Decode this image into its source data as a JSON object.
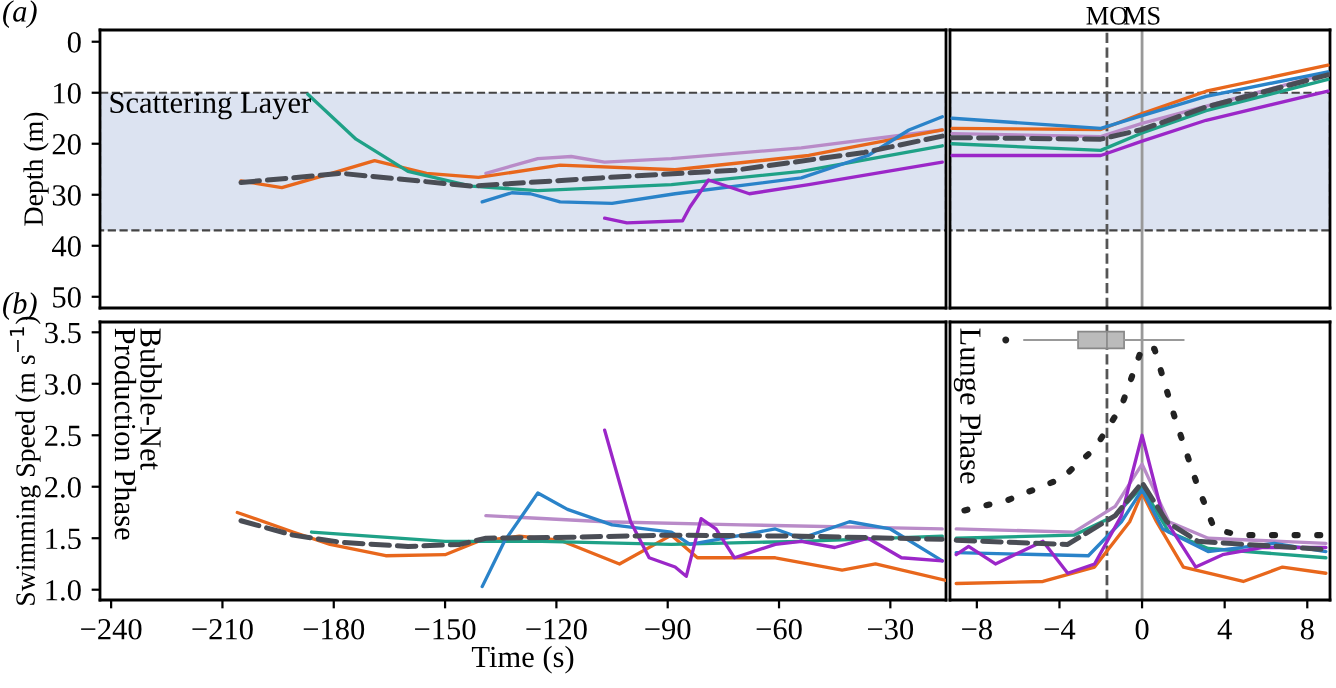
{
  "chart_data": [
    {
      "type": "line",
      "title": "(a)",
      "ylabel": "Depth (m)",
      "xlim": [
        -243,
        -15
      ],
      "ylim": [
        52.2,
        -2.3
      ],
      "xticks": [
        -240,
        -210,
        -180,
        -150,
        -120,
        -90,
        -60,
        -30
      ],
      "yticks": [
        0,
        10,
        20,
        30,
        40,
        50
      ],
      "tick_labels": "y",
      "bands": [
        {
          "axis": "y",
          "from": 10,
          "to": 37,
          "label": "Scattering Layer",
          "color": "#dce3f1"
        }
      ],
      "series": [
        {
          "color": "#b98bc8",
          "x": [
            -139,
            -125,
            -116,
            -107,
            -89,
            -54,
            -16
          ],
          "values": [
            25.8,
            22.9,
            22.5,
            23.6,
            22.9,
            20.8,
            17.3
          ]
        },
        {
          "color": "#e8671c",
          "x": [
            -205,
            -194,
            -182,
            -169,
            -155,
            -141,
            -119,
            -88,
            -52,
            -16
          ],
          "values": [
            27.3,
            28.6,
            26.1,
            23.3,
            25.8,
            26.6,
            24.2,
            25.1,
            22.3,
            17.3
          ]
        },
        {
          "color": "#1fa187",
          "x": [
            -187,
            -174,
            -160,
            -143,
            -125,
            -89,
            -54,
            -16
          ],
          "values": [
            10.3,
            19.1,
            25.4,
            28.3,
            29.2,
            28.0,
            25.4,
            20.4
          ]
        },
        {
          "color": "#2a83c9",
          "x": [
            -140,
            -132,
            -127,
            -119,
            -105,
            -88,
            -54,
            -36,
            -25,
            -16
          ],
          "values": [
            31.4,
            29.6,
            29.8,
            31.4,
            31.7,
            29.8,
            26.7,
            22.3,
            17.3,
            14.7
          ]
        },
        {
          "color": "#9b27c8",
          "x": [
            -107,
            -101,
            -86,
            -84,
            -79,
            -68,
            -52,
            -34,
            -16
          ],
          "values": [
            34.6,
            35.5,
            35.1,
            32.4,
            27.1,
            29.8,
            28.0,
            25.8,
            23.6
          ]
        },
        {
          "color": "#4a4d55",
          "line_style": "dashed",
          "x": [
            -205,
            -178,
            -143,
            -108,
            -72,
            -37,
            -16
          ],
          "values": [
            27.6,
            25.8,
            28.3,
            26.7,
            25.2,
            21.7,
            18.5
          ]
        }
      ]
    },
    {
      "type": "line",
      "xlim": [
        -9.3,
        9.1
      ],
      "ylim": [
        52.2,
        -2.3
      ],
      "xticks": [
        -8,
        -4,
        0,
        4,
        8
      ],
      "yticks": [
        0,
        10,
        20,
        30,
        40,
        50
      ],
      "tick_labels": false,
      "bands": [
        {
          "axis": "y",
          "from": 10,
          "to": 37,
          "color": "#dce3f1"
        }
      ],
      "ref_lines": [
        {
          "axis": "x",
          "value": -1.7,
          "label": "MO",
          "color": "#555555",
          "line_style": "dashed"
        },
        {
          "axis": "x",
          "value": 0,
          "label": "MS",
          "color": "#999999",
          "line_style": "solid"
        }
      ],
      "series": [
        {
          "color": "#b98bc8",
          "x": [
            -9.2,
            -2.0,
            0,
            9.0
          ],
          "values": [
            18.0,
            18.6,
            16.0,
            6.2
          ]
        },
        {
          "color": "#e8671c",
          "x": [
            -9.2,
            -2.0,
            0,
            3.1,
            9.0
          ],
          "values": [
            17.0,
            17.2,
            14.1,
            9.7,
            4.6
          ]
        },
        {
          "color": "#1fa187",
          "x": [
            -9.2,
            -2.0,
            0,
            3.1,
            9.0
          ],
          "values": [
            20.0,
            21.3,
            17.9,
            13.5,
            7.4
          ]
        },
        {
          "color": "#2a83c9",
          "x": [
            -9.2,
            -2.0,
            0,
            3.1,
            9.0
          ],
          "values": [
            15.0,
            17.0,
            14.5,
            10.7,
            5.9
          ]
        },
        {
          "color": "#9b27c8",
          "x": [
            -9.2,
            -2.0,
            0,
            3.1,
            9.0
          ],
          "values": [
            22.3,
            22.3,
            19.5,
            15.4,
            9.7
          ]
        },
        {
          "color": "#4a4d55",
          "line_style": "dashed",
          "x": [
            -9.2,
            -2.0,
            0,
            3.1,
            9.0
          ],
          "values": [
            18.8,
            19.1,
            17.2,
            12.8,
            6.5
          ]
        }
      ]
    },
    {
      "type": "line",
      "title": "(b)",
      "xlabel": "Time (s)",
      "ylabel": "Swimming Speed (m s$^{−1}$)",
      "xlim": [
        -243,
        -15
      ],
      "ylim": [
        0.9,
        3.6
      ],
      "xticks": [
        {
          "value": -240,
          "label": "−240"
        },
        {
          "value": -210,
          "label": "−210"
        },
        {
          "value": -180,
          "label": "−180"
        },
        {
          "value": -150,
          "label": "−150"
        },
        {
          "value": -120,
          "label": "−120"
        },
        {
          "value": -90,
          "label": "−90"
        },
        {
          "value": -60,
          "label": "−60"
        },
        {
          "value": -30,
          "label": "−30"
        }
      ],
      "yticks": [
        {
          "value": 1,
          "label": "1.0"
        },
        1.5,
        {
          "value": 2,
          "label": "2.0"
        },
        2.5,
        {
          "value": 3,
          "label": "3.0"
        },
        3.5
      ],
      "annotations": [
        "Bubble-Net\nProduction Phase"
      ],
      "series": [
        {
          "color": "#b98bc8",
          "x": [
            -139,
            -107,
            -70,
            -16
          ],
          "values": [
            1.72,
            1.66,
            1.63,
            1.59
          ]
        },
        {
          "color": "#e8671c",
          "x": [
            -206,
            -191,
            -181,
            -166,
            -150,
            -141,
            -130,
            -119,
            -103,
            -89,
            -82,
            -61,
            -43,
            -34,
            -15
          ],
          "values": [
            1.75,
            1.56,
            1.44,
            1.33,
            1.34,
            1.47,
            1.52,
            1.48,
            1.25,
            1.53,
            1.31,
            1.31,
            1.19,
            1.25,
            1.09
          ]
        },
        {
          "color": "#1fa187",
          "x": [
            -186,
            -150,
            -124,
            -89,
            -54,
            -16
          ],
          "values": [
            1.56,
            1.47,
            1.47,
            1.44,
            1.47,
            1.52
          ]
        },
        {
          "color": "#2a83c9",
          "x": [
            -140,
            -134,
            -125,
            -117,
            -105,
            -89,
            -84,
            -70,
            -61,
            -54,
            -41,
            -30,
            -16
          ],
          "values": [
            1.03,
            1.47,
            1.94,
            1.78,
            1.63,
            1.56,
            1.44,
            1.53,
            1.59,
            1.5,
            1.66,
            1.59,
            1.28
          ]
        },
        {
          "color": "#9b27c8",
          "x": [
            -107,
            -100,
            -95,
            -88,
            -85,
            -81,
            -77,
            -72,
            -61,
            -54,
            -45,
            -36,
            -27,
            -16
          ],
          "values": [
            2.55,
            1.66,
            1.31,
            1.22,
            1.13,
            1.69,
            1.59,
            1.31,
            1.44,
            1.47,
            1.41,
            1.5,
            1.31,
            1.28
          ]
        },
        {
          "color": "#4a4d55",
          "line_style": "dashed",
          "x": [
            -205,
            -191,
            -178,
            -160,
            -146,
            -139,
            -116,
            -89,
            -54,
            -16
          ],
          "values": [
            1.67,
            1.53,
            1.46,
            1.42,
            1.44,
            1.5,
            1.51,
            1.53,
            1.52,
            1.49
          ]
        }
      ]
    },
    {
      "type": "line",
      "xlim": [
        -9.3,
        9.1
      ],
      "ylim": [
        0.9,
        3.6
      ],
      "xticks": [
        {
          "value": -8,
          "label": "−8"
        },
        {
          "value": -4,
          "label": "−4"
        },
        0,
        4,
        8
      ],
      "yticks": [
        1,
        1.5,
        2,
        2.5,
        3,
        3.5
      ],
      "tick_labels": "x",
      "annotations": [
        "Lunge Phase"
      ],
      "ref_lines": [
        {
          "axis": "x",
          "value": -1.7,
          "color": "#555555",
          "line_style": "dashed"
        },
        {
          "axis": "x",
          "value": 0,
          "color": "#999999",
          "line_style": "solid"
        }
      ],
      "series": [
        {
          "color": "#222222",
          "line_style": "dotted",
          "x": [
            -8.6,
            -6.5,
            -3.9,
            -2.3,
            -1.0,
            0,
            0.6,
            1.6,
            2.65,
            3.5,
            4.7,
            8.9
          ],
          "values": [
            1.77,
            1.87,
            2.08,
            2.37,
            2.78,
            3.35,
            3.34,
            2.66,
            2.03,
            1.59,
            1.53,
            1.53
          ]
        },
        {
          "color": "#b98bc8",
          "x": [
            -9,
            -3.3,
            -1.3,
            0,
            1.3,
            3.2,
            8.9
          ],
          "values": [
            1.59,
            1.56,
            1.81,
            2.22,
            1.66,
            1.5,
            1.45
          ]
        },
        {
          "color": "#e8671c",
          "x": [
            -9,
            -4.8,
            -2.3,
            -0.6,
            0,
            0.7,
            2,
            4.9,
            6.8,
            8.9
          ],
          "values": [
            1.06,
            1.08,
            1.22,
            1.66,
            1.94,
            1.66,
            1.22,
            1.08,
            1.22,
            1.16
          ]
        },
        {
          "color": "#1fa187",
          "x": [
            -9,
            -3.3,
            -1.3,
            0,
            1.3,
            3.2,
            8.9
          ],
          "values": [
            1.5,
            1.53,
            1.72,
            2.0,
            1.56,
            1.4,
            1.31
          ]
        },
        {
          "color": "#2a83c9",
          "x": [
            -9,
            -2.6,
            -1,
            0,
            1,
            3.2,
            6.4,
            8.9
          ],
          "values": [
            1.36,
            1.33,
            1.66,
            1.97,
            1.59,
            1.37,
            1.45,
            1.37
          ]
        },
        {
          "color": "#9b27c8",
          "x": [
            -9,
            -8.4,
            -7.1,
            -4.8,
            -3.6,
            -2.3,
            -1,
            0,
            1,
            2.6,
            3.9,
            5.8,
            8.9
          ],
          "values": [
            1.34,
            1.42,
            1.25,
            1.47,
            1.16,
            1.25,
            1.72,
            2.5,
            1.72,
            1.22,
            1.34,
            1.41,
            1.41
          ]
        },
        {
          "color": "#4a4d55",
          "line_style": "dashed",
          "x": [
            -9,
            -3.6,
            -1.3,
            0,
            1.2,
            2.7,
            8.9
          ],
          "values": [
            1.48,
            1.44,
            1.72,
            2.04,
            1.66,
            1.47,
            1.39
          ]
        }
      ]
    },
    {
      "type": "box",
      "orientation": "horizontal",
      "categories": [
        null
      ],
      "xlim": [
        -9.3,
        9.1
      ],
      "xticks": [
        -8,
        -4,
        0,
        4,
        8
      ],
      "tick_labels": false,
      "series": [
        {
          "color": "#bbbbbb",
          "boxes": [
            {
              "low": -5.7,
              "q1": -3.1,
              "median": -1.7,
              "q3": -0.87,
              "high": 2.0,
              "outliers": [
                -6.6
              ]
            }
          ]
        }
      ]
    }
  ]
}
